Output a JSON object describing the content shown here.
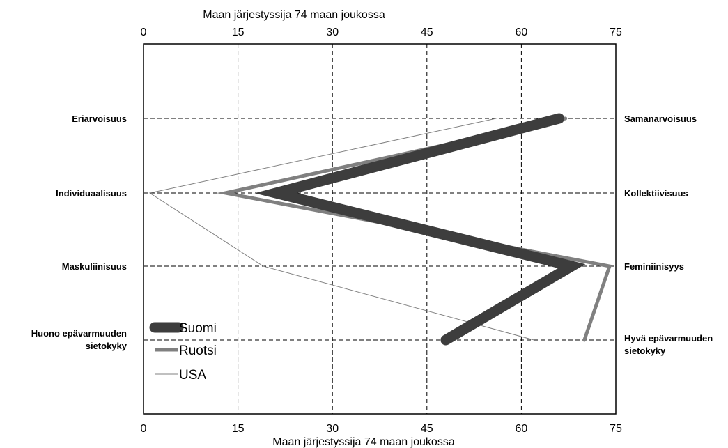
{
  "chart_data": {
    "type": "line",
    "orientation": "horizontal-profile",
    "xlabel_top": "Maan järjestyssija 74 maan joukossa",
    "xlabel_bottom": "Maan järjestyssija 74 maan joukossa",
    "xlim": [
      0,
      75
    ],
    "xticks": [
      "0",
      "15",
      "30",
      "45",
      "60",
      "75"
    ],
    "tick_values": [
      0,
      15,
      30,
      45,
      60,
      75
    ],
    "grid": true,
    "legend_position": "bottom-left",
    "left_labels": [
      "Eriarvoisuus",
      "Individuaalisuus",
      "Maskuliinisuus",
      "Huono epävarmuuden sietokyky"
    ],
    "left_label_lines": [
      [
        "Eriarvoisuus"
      ],
      [
        "Individuaalisuus"
      ],
      [
        "Maskuliinisuus"
      ],
      [
        "Huono epävarmuuden",
        "sietokyky"
      ]
    ],
    "right_labels": [
      "Samanarvoisuus",
      "Kollektiivisuus",
      "Feminiinisyys",
      "Hyvä epävarmuuden sietokyky"
    ],
    "right_label_lines": [
      [
        "Samanarvoisuus"
      ],
      [
        "Kollektiivisuus"
      ],
      [
        "Feminiinisyys"
      ],
      [
        "Hyvä epävarmuuden",
        "sietokyky"
      ]
    ],
    "series": [
      {
        "name": "Suomi",
        "values": [
          66,
          21,
          68,
          48
        ],
        "color": "#3d3d3d",
        "width": 15
      },
      {
        "name": "Ruotsi",
        "values": [
          67,
          13,
          74,
          70
        ],
        "color": "#808080",
        "width": 5
      },
      {
        "name": "USA",
        "values": [
          56,
          1,
          19,
          62
        ],
        "color": "#808080",
        "width": 1
      }
    ]
  }
}
